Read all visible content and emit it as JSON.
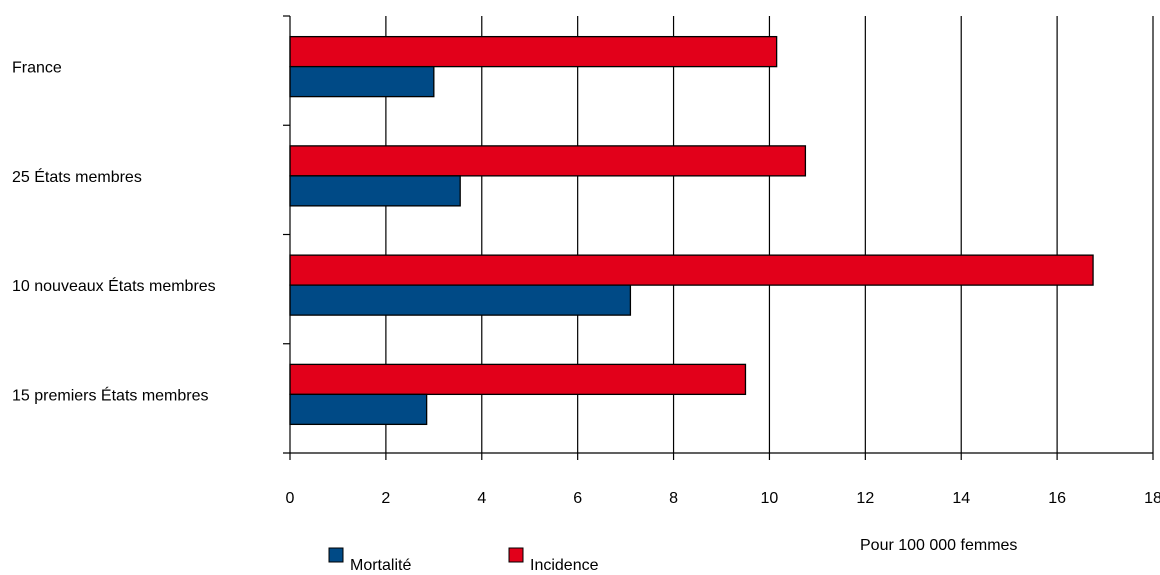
{
  "chart_data": {
    "type": "bar",
    "orientation": "horizontal",
    "categories": [
      "France",
      "25 États membres",
      "10 nouveaux États membres",
      "15 premiers États membres"
    ],
    "series": [
      {
        "name": "Incidence",
        "values": [
          10.15,
          10.75,
          16.75,
          9.5
        ]
      },
      {
        "name": "Mortalité",
        "values": [
          3.0,
          3.55,
          7.1,
          2.85
        ]
      }
    ],
    "xlim": [
      0,
      18
    ],
    "xticks": [
      "0",
      "2",
      "4",
      "6",
      "8",
      "10",
      "12",
      "14",
      "16",
      "18"
    ],
    "xlabel": "Pour 100 000 femmes",
    "grid": true,
    "legend_position": "bottom",
    "colors": {
      "Mortalité": "#004a86",
      "Incidence": "#e2001a"
    }
  },
  "legend": [
    {
      "label": "Mortalité",
      "color": "#004a86"
    },
    {
      "label": "Incidence",
      "color": "#e2001a"
    }
  ]
}
